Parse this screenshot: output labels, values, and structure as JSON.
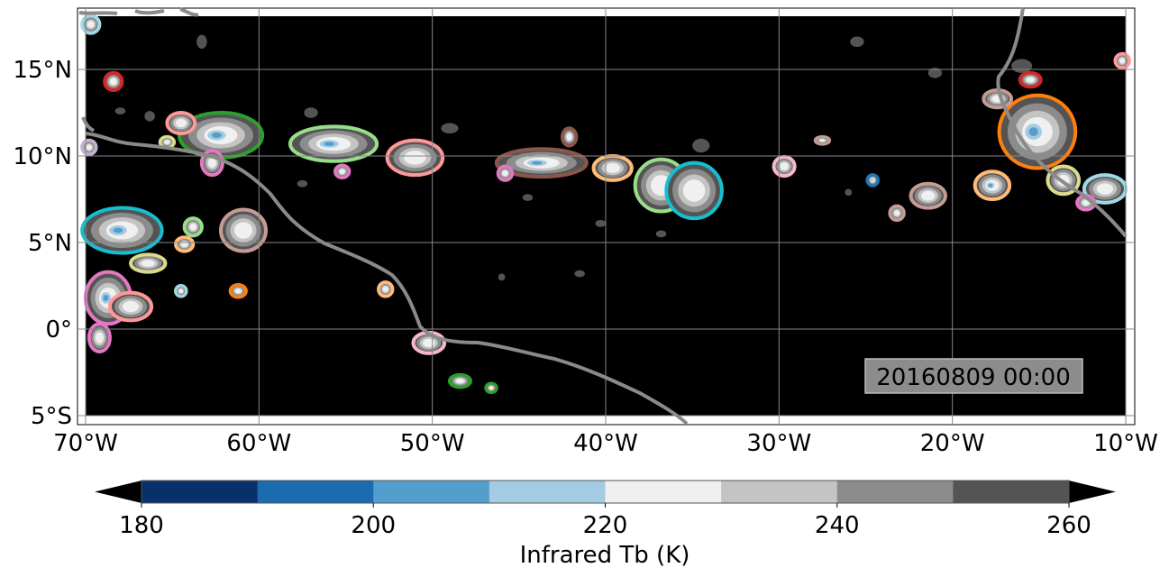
{
  "chart_data": {
    "type": "map",
    "timestamp": "20160809 00:00",
    "lon_range": [
      -70,
      -10
    ],
    "lat_range": [
      -5,
      18
    ],
    "lon_ticks": [
      {
        "value": -70,
        "label": "70°W"
      },
      {
        "value": -60,
        "label": "60°W"
      },
      {
        "value": -50,
        "label": "50°W"
      },
      {
        "value": -40,
        "label": "40°W"
      },
      {
        "value": -30,
        "label": "30°W"
      },
      {
        "value": -20,
        "label": "20°W"
      },
      {
        "value": -10,
        "label": "10°W"
      }
    ],
    "lat_ticks": [
      {
        "value": 15,
        "label": "15°N"
      },
      {
        "value": 10,
        "label": "10°N"
      },
      {
        "value": 5,
        "label": "5°N"
      },
      {
        "value": 0,
        "label": "0°"
      },
      {
        "value": -5,
        "label": "5°S"
      }
    ],
    "grid": true,
    "colorbar": {
      "label": "Infrared Tb (K)",
      "range": [
        180,
        260
      ],
      "levels": [
        180,
        190,
        200,
        210,
        220,
        230,
        240,
        250,
        260
      ],
      "colors": [
        "#08306b",
        "#1c6aaf",
        "#539ecd",
        "#a3cbe2",
        "#f0f0f0",
        "#c4c4c4",
        "#8c8c8c",
        "#545454"
      ],
      "ticks": [
        {
          "value": 180,
          "label": "180"
        },
        {
          "value": 200,
          "label": "200"
        },
        {
          "value": 220,
          "label": "220"
        },
        {
          "value": 240,
          "label": "240"
        },
        {
          "value": 260,
          "label": "260"
        }
      ],
      "extend": "both"
    },
    "cloud_systems": [
      {
        "lon": -68.4,
        "lat": 14.3,
        "rx": 0.5,
        "ry": 0.5,
        "edge": "#d62728",
        "core": false
      },
      {
        "lon": -62.2,
        "lat": 11.2,
        "rx": 2.4,
        "ry": 1.3,
        "edge": "#2ca02c",
        "core": true
      },
      {
        "lon": -64.5,
        "lat": 11.9,
        "rx": 0.8,
        "ry": 0.6,
        "edge": "#ff9896",
        "core": false
      },
      {
        "lon": -55.7,
        "lat": 10.7,
        "rx": 2.5,
        "ry": 1.0,
        "edge": "#98df8a",
        "core": true
      },
      {
        "lon": -51.0,
        "lat": 9.9,
        "rx": 1.6,
        "ry": 1.0,
        "edge": "#ff9896",
        "core": false
      },
      {
        "lon": -55.2,
        "lat": 9.1,
        "rx": 0.4,
        "ry": 0.35,
        "edge": "#e377c2",
        "core": false
      },
      {
        "lon": -62.7,
        "lat": 9.6,
        "rx": 0.6,
        "ry": 0.7,
        "edge": "#e377c2",
        "core": false
      },
      {
        "lon": -43.7,
        "lat": 9.6,
        "rx": 2.6,
        "ry": 0.8,
        "edge": "#8c564b",
        "core": true
      },
      {
        "lon": -39.6,
        "lat": 9.3,
        "rx": 1.1,
        "ry": 0.7,
        "edge": "#ffbb78",
        "core": false
      },
      {
        "lon": -36.8,
        "lat": 8.3,
        "rx": 1.5,
        "ry": 1.5,
        "edge": "#98df8a",
        "core": false
      },
      {
        "lon": -34.9,
        "lat": 8.0,
        "rx": 1.6,
        "ry": 1.6,
        "edge": "#17becf",
        "core": false
      },
      {
        "lon": -29.7,
        "lat": 9.4,
        "rx": 0.6,
        "ry": 0.55,
        "edge": "#f7b6d2",
        "core": false
      },
      {
        "lon": -21.4,
        "lat": 7.7,
        "rx": 1.0,
        "ry": 0.7,
        "edge": "#c49c94",
        "core": false
      },
      {
        "lon": -24.6,
        "lat": 8.6,
        "rx": 0.3,
        "ry": 0.3,
        "edge": "#1f77b4",
        "core": true
      },
      {
        "lon": -23.2,
        "lat": 6.7,
        "rx": 0.4,
        "ry": 0.4,
        "edge": "#c49c94",
        "core": false
      },
      {
        "lon": -15.1,
        "lat": 11.4,
        "rx": 2.2,
        "ry": 2.1,
        "edge": "#ff7f0e",
        "core": true
      },
      {
        "lon": -17.4,
        "lat": 13.3,
        "rx": 0.8,
        "ry": 0.5,
        "edge": "#c49c94",
        "core": false
      },
      {
        "lon": -15.5,
        "lat": 14.4,
        "rx": 0.6,
        "ry": 0.4,
        "edge": "#d62728",
        "core": false
      },
      {
        "lon": -17.7,
        "lat": 8.3,
        "rx": 1.0,
        "ry": 0.8,
        "edge": "#ffbb78",
        "core": true
      },
      {
        "lon": -13.6,
        "lat": 8.6,
        "rx": 0.9,
        "ry": 0.8,
        "edge": "#dbdb8d",
        "core": false
      },
      {
        "lon": -11.2,
        "lat": 8.1,
        "rx": 1.2,
        "ry": 0.8,
        "edge": "#9edae5",
        "core": false
      },
      {
        "lon": -67.9,
        "lat": 5.7,
        "rx": 2.3,
        "ry": 1.3,
        "edge": "#17becf",
        "core": true
      },
      {
        "lon": -66.4,
        "lat": 3.8,
        "rx": 1.0,
        "ry": 0.5,
        "edge": "#dbdb8d",
        "core": false
      },
      {
        "lon": -60.9,
        "lat": 5.7,
        "rx": 1.3,
        "ry": 1.2,
        "edge": "#c49c94",
        "core": false
      },
      {
        "lon": -63.8,
        "lat": 5.9,
        "rx": 0.5,
        "ry": 0.5,
        "edge": "#98df8a",
        "core": false
      },
      {
        "lon": -64.3,
        "lat": 4.9,
        "rx": 0.5,
        "ry": 0.4,
        "edge": "#ffbb78",
        "core": false
      },
      {
        "lon": -68.7,
        "lat": 1.8,
        "rx": 1.3,
        "ry": 1.5,
        "edge": "#e377c2",
        "core": true
      },
      {
        "lon": -67.4,
        "lat": 1.3,
        "rx": 1.2,
        "ry": 0.8,
        "edge": "#ff9896",
        "core": false
      },
      {
        "lon": -69.2,
        "lat": -0.5,
        "rx": 0.6,
        "ry": 0.8,
        "edge": "#e377c2",
        "core": false
      },
      {
        "lon": -61.2,
        "lat": 2.2,
        "rx": 0.45,
        "ry": 0.35,
        "edge": "#ff7f0e",
        "core": false
      },
      {
        "lon": -52.7,
        "lat": 2.3,
        "rx": 0.4,
        "ry": 0.4,
        "edge": "#ffbb78",
        "core": false
      },
      {
        "lon": -50.2,
        "lat": -0.8,
        "rx": 0.9,
        "ry": 0.6,
        "edge": "#f7b6d2",
        "core": false
      },
      {
        "lon": -48.4,
        "lat": -3.0,
        "rx": 0.6,
        "ry": 0.35,
        "edge": "#2ca02c",
        "core": false
      },
      {
        "lon": -46.6,
        "lat": -3.4,
        "rx": 0.3,
        "ry": 0.25,
        "edge": "#2ca02c",
        "core": false
      },
      {
        "lon": -10.2,
        "lat": 15.5,
        "rx": 0.4,
        "ry": 0.4,
        "edge": "#ff9896",
        "core": false
      },
      {
        "lon": -69.7,
        "lat": 17.6,
        "rx": 0.5,
        "ry": 0.5,
        "edge": "#9edae5",
        "core": false
      },
      {
        "lon": -69.8,
        "lat": 10.5,
        "rx": 0.4,
        "ry": 0.4,
        "edge": "#c5b0d5",
        "core": false
      },
      {
        "lon": -42.1,
        "lat": 11.1,
        "rx": 0.4,
        "ry": 0.5,
        "edge": "#8c564b",
        "core": false
      },
      {
        "lon": -45.8,
        "lat": 9.0,
        "rx": 0.4,
        "ry": 0.4,
        "edge": "#e377c2",
        "core": false
      },
      {
        "lon": -64.5,
        "lat": 2.2,
        "rx": 0.3,
        "ry": 0.3,
        "edge": "#9edae5",
        "core": false
      },
      {
        "lon": -12.3,
        "lat": 7.3,
        "rx": 0.5,
        "ry": 0.4,
        "edge": "#e377c2",
        "core": false
      },
      {
        "lon": -27.5,
        "lat": 10.9,
        "rx": 0.4,
        "ry": 0.2,
        "edge": "#c49c94",
        "core": false
      },
      {
        "lon": -65.3,
        "lat": 10.8,
        "rx": 0.4,
        "ry": 0.3,
        "edge": "#dbdb8d",
        "core": false
      }
    ],
    "gray_cells": [
      {
        "lon": -34.5,
        "lat": 10.6,
        "rx": 0.5,
        "ry": 0.4
      },
      {
        "lon": -16.0,
        "lat": 15.2,
        "rx": 0.6,
        "ry": 0.4
      },
      {
        "lon": -21.0,
        "lat": 14.8,
        "rx": 0.4,
        "ry": 0.3
      },
      {
        "lon": -25.5,
        "lat": 16.6,
        "rx": 0.4,
        "ry": 0.3
      },
      {
        "lon": -49.0,
        "lat": 11.6,
        "rx": 0.5,
        "ry": 0.3
      },
      {
        "lon": -57.0,
        "lat": 12.5,
        "rx": 0.4,
        "ry": 0.3
      },
      {
        "lon": -63.3,
        "lat": 16.6,
        "rx": 0.3,
        "ry": 0.4
      },
      {
        "lon": -46.0,
        "lat": 3.0,
        "rx": 0.2,
        "ry": 0.2
      },
      {
        "lon": -41.5,
        "lat": 3.2,
        "rx": 0.3,
        "ry": 0.2
      },
      {
        "lon": -37.0,
        "lat": 7.0,
        "rx": 0.4,
        "ry": 0.3
      },
      {
        "lon": -57.5,
        "lat": 8.4,
        "rx": 0.3,
        "ry": 0.2
      },
      {
        "lon": -44.5,
        "lat": 7.6,
        "rx": 0.3,
        "ry": 0.2
      },
      {
        "lon": -40.3,
        "lat": 6.1,
        "rx": 0.3,
        "ry": 0.2
      },
      {
        "lon": -36.8,
        "lat": 5.5,
        "rx": 0.3,
        "ry": 0.2
      },
      {
        "lon": -26.0,
        "lat": 7.9,
        "rx": 0.2,
        "ry": 0.2
      },
      {
        "lon": -66.3,
        "lat": 12.3,
        "rx": 0.3,
        "ry": 0.3
      },
      {
        "lon": -68.0,
        "lat": 12.6,
        "rx": 0.3,
        "ry": 0.2
      }
    ]
  }
}
